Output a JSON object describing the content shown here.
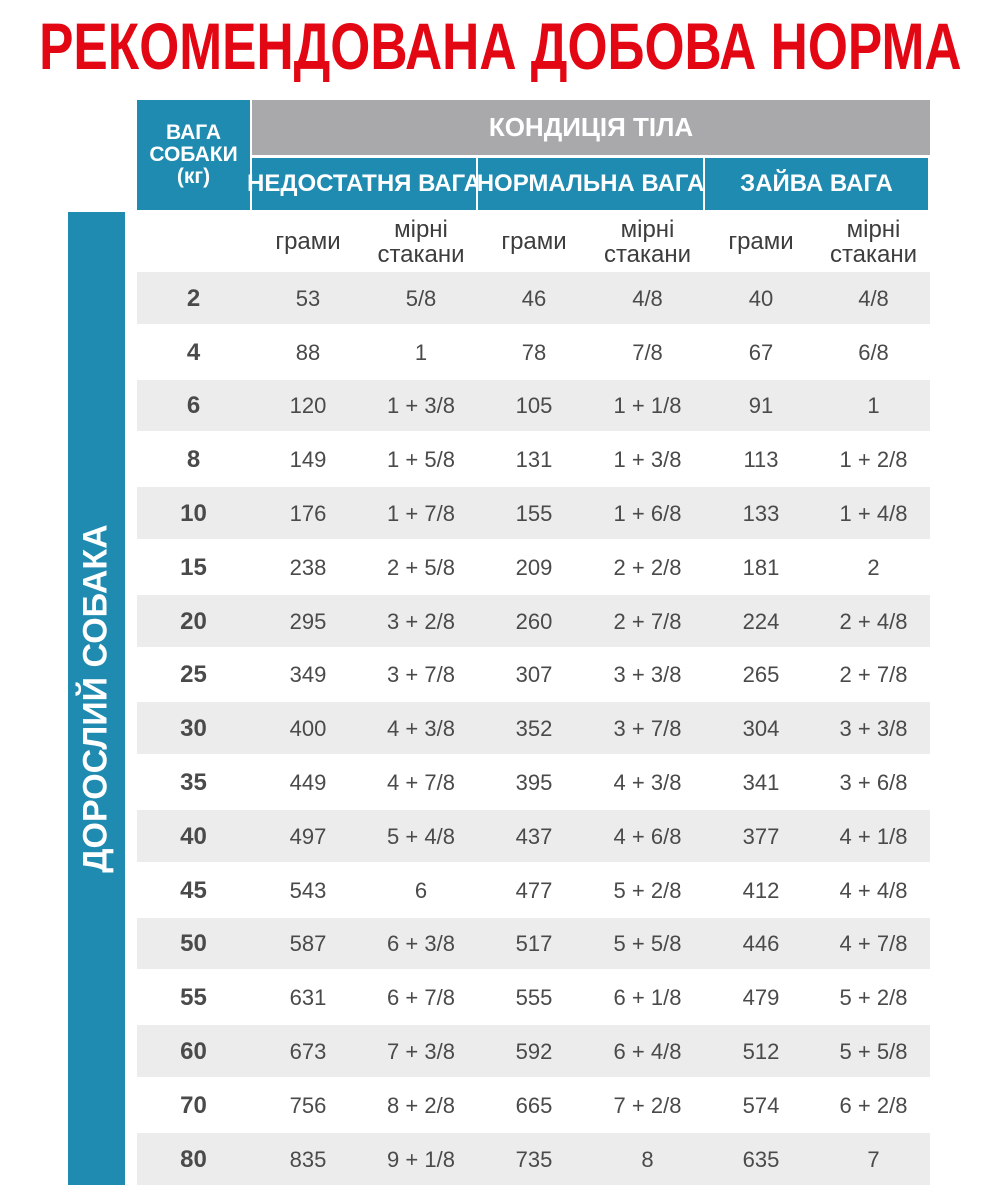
{
  "title": "РЕКОМЕНДОВАНА ДОБОВА НОРМА",
  "side_label": "ДОРОСЛИЙ СОБАКА",
  "header": {
    "weight": "ВАГА СОБАКИ (кг)",
    "condition": "КОНДИЦІЯ ТІЛА",
    "groups": [
      {
        "name": "НЕДОСТАТНЯ ВАГА",
        "columns": [
          "грами",
          "мірні стакани"
        ]
      },
      {
        "name": "НОРМАЛЬНА ВАГА",
        "columns": [
          "грами",
          "мірні стакани"
        ]
      },
      {
        "name": "ЗАЙВА ВАГА",
        "columns": [
          "грами",
          "мірні стакани"
        ]
      }
    ]
  },
  "rows": [
    [
      2,
      53,
      "5/8",
      46,
      "4/8",
      40,
      "4/8"
    ],
    [
      4,
      88,
      "1",
      78,
      "7/8",
      67,
      "6/8"
    ],
    [
      6,
      120,
      "1 + 3/8",
      105,
      "1 + 1/8",
      91,
      "1"
    ],
    [
      8,
      149,
      "1 + 5/8",
      131,
      "1 + 3/8",
      113,
      "1 + 2/8"
    ],
    [
      10,
      176,
      "1 + 7/8",
      155,
      "1 + 6/8",
      133,
      "1 + 4/8"
    ],
    [
      15,
      238,
      "2 + 5/8",
      209,
      "2 + 2/8",
      181,
      "2"
    ],
    [
      20,
      295,
      "3 + 2/8",
      260,
      "2 + 7/8",
      224,
      "2 + 4/8"
    ],
    [
      25,
      349,
      "3 + 7/8",
      307,
      "3 + 3/8",
      265,
      "2 + 7/8"
    ],
    [
      30,
      400,
      "4 + 3/8",
      352,
      "3 + 7/8",
      304,
      "3 + 3/8"
    ],
    [
      35,
      449,
      "4 + 7/8",
      395,
      "4 + 3/8",
      341,
      "3 + 6/8"
    ],
    [
      40,
      497,
      "5 + 4/8",
      437,
      "4 + 6/8",
      377,
      "4 + 1/8"
    ],
    [
      45,
      543,
      "6",
      477,
      "5 + 2/8",
      412,
      "4 + 4/8"
    ],
    [
      50,
      587,
      "6 + 3/8",
      517,
      "5 + 5/8",
      446,
      "4 + 7/8"
    ],
    [
      55,
      631,
      "6 + 7/8",
      555,
      "6 + 1/8",
      479,
      "5 + 2/8"
    ],
    [
      60,
      673,
      "7 + 3/8",
      592,
      "6 + 4/8",
      512,
      "5 + 5/8"
    ],
    [
      70,
      756,
      "8 + 2/8",
      665,
      "7 + 2/8",
      574,
      "6 + 2/8"
    ],
    [
      80,
      835,
      "9 + 1/8",
      735,
      "8",
      635,
      "7"
    ]
  ]
}
